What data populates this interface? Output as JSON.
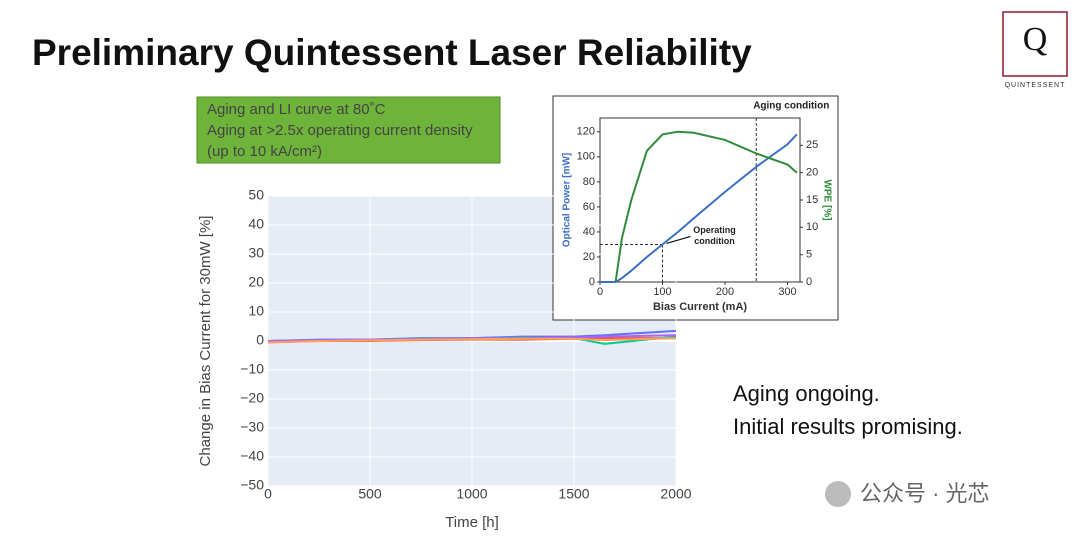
{
  "header": {
    "title": "Preliminary Quintessent Laser Reliability"
  },
  "logo": {
    "letter": "Q",
    "name": "QUINTESSENT"
  },
  "note_box": {
    "lines": [
      "Aging and LI curve at 80˚C",
      "Aging at >2.5x operating current density",
      "(up to 10 kA/cm²)"
    ]
  },
  "remarks": [
    "Aging ongoing.",
    "Initial results promising."
  ],
  "watermark": "公众号 · 光芯",
  "chart_data": [
    {
      "type": "line",
      "x_label": "Time [h]",
      "y_label": "Change in Bias Current for 30mW [%]",
      "x": [
        0,
        250,
        500,
        750,
        1000,
        1250,
        1500,
        1650,
        2000
      ],
      "series": [
        {
          "color": "#636efa",
          "values": [
            0,
            0.5,
            0.5,
            1,
            1,
            1.5,
            1.5,
            2,
            3.5
          ]
        },
        {
          "color": "#ef553b",
          "values": [
            -0.5,
            0,
            0,
            0.3,
            0.5,
            0.5,
            0.8,
            1,
            1
          ]
        },
        {
          "color": "#00cc96",
          "values": [
            0,
            0.3,
            0.5,
            0.8,
            1,
            1.2,
            1,
            -1,
            1.5
          ]
        },
        {
          "color": "#ab63fa",
          "values": [
            0,
            0.3,
            0.5,
            0.7,
            1,
            1,
            1.2,
            1.5,
            2
          ]
        },
        {
          "color": "#ffa15a",
          "values": [
            -0.5,
            0,
            0.2,
            0.5,
            0.6,
            0.8,
            0.8,
            0.3,
            1
          ]
        }
      ],
      "xlim": [
        0,
        2000
      ],
      "xticks": [
        0,
        500,
        1000,
        1500,
        2000
      ],
      "ylim": [
        -50,
        50
      ],
      "yticks": [
        {
          "value": -50,
          "label": "−50"
        },
        {
          "value": -40,
          "label": "−40"
        },
        {
          "value": -30,
          "label": "−30"
        },
        {
          "value": -20,
          "label": "−20"
        },
        {
          "value": -10,
          "label": "−10"
        },
        0,
        10,
        20,
        30,
        40,
        50
      ],
      "grid": true
    },
    {
      "type": "line",
      "x_label": "Bias Current (mA)",
      "y_label": "Optical Power [mW]",
      "y2_label": "WPE [%]",
      "x": [
        0,
        25,
        35,
        50,
        75,
        100,
        125,
        150,
        200,
        250,
        300,
        315
      ],
      "series": [
        {
          "color": "#3a6fc4",
          "values": [
            0,
            0,
            3,
            9,
            20,
            30,
            40,
            51,
            72,
            92,
            110,
            118
          ]
        },
        {
          "color": "#2e8b3a",
          "axis": "y2",
          "values": [
            null,
            0,
            8,
            15,
            24,
            27,
            27.5,
            27.3,
            26,
            23.5,
            21.5,
            20
          ]
        }
      ],
      "xlim": [
        0,
        320
      ],
      "xticks": [
        0,
        100,
        200,
        300
      ],
      "ylim": [
        0,
        131
      ],
      "yticks": [
        0,
        20,
        40,
        60,
        80,
        100,
        120
      ],
      "y2lim": [
        0,
        30
      ],
      "y2ticks": [
        0,
        5,
        10,
        15,
        20,
        25
      ],
      "annotations": [
        {
          "text": [
            "Aging condition"
          ],
          "x": 250
        },
        {
          "text": [
            "Operating",
            "condition"
          ],
          "x": 100,
          "y": 30
        }
      ]
    }
  ]
}
